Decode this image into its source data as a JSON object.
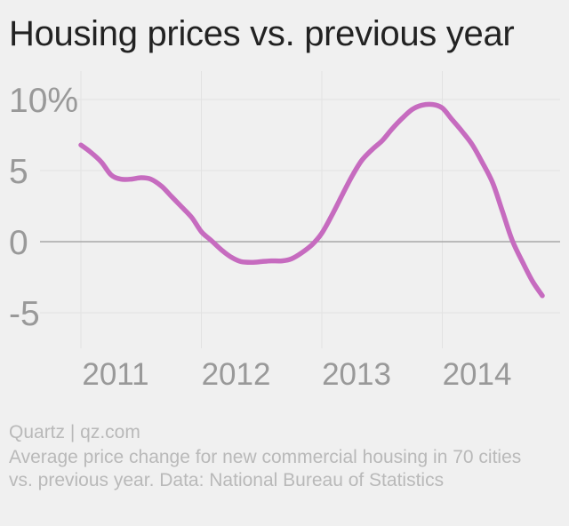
{
  "header": {
    "title": "Housing prices vs. previous year"
  },
  "footer": {
    "credit": "Quartz | qz.com",
    "description": "Average price change for new commercial housing in 70 cities vs. previous year. Data: National Bureau of Statistics"
  },
  "colors": {
    "line": "#c66bbf",
    "grid": "#e2e2e2",
    "zero_line": "#a8a8a8",
    "tick_text": "#999999",
    "background": "#f0f0f0"
  },
  "chart_data": {
    "type": "line",
    "title": "Housing prices vs. previous year",
    "xlabel": "",
    "ylabel": "",
    "xlim": [
      2010.9,
      2014.95
    ],
    "ylim": [
      -6,
      12
    ],
    "x_ticks": [
      {
        "value": 2011,
        "label": "2011"
      },
      {
        "value": 2012,
        "label": "2012"
      },
      {
        "value": 2013,
        "label": "2013"
      },
      {
        "value": 2014,
        "label": "2014"
      }
    ],
    "y_ticks": [
      {
        "value": 10,
        "label": "10%"
      },
      {
        "value": 5,
        "label": "5"
      },
      {
        "value": 0,
        "label": "0"
      },
      {
        "value": -5,
        "label": "-5"
      }
    ],
    "grid": true,
    "series": [
      {
        "x": [
          2011.0,
          2011.08,
          2011.17,
          2011.25,
          2011.33,
          2011.42,
          2011.5,
          2011.58,
          2011.67,
          2011.75,
          2011.83,
          2011.92,
          2012.0,
          2012.08,
          2012.17,
          2012.25,
          2012.33,
          2012.42,
          2012.5,
          2012.58,
          2012.67,
          2012.75,
          2012.83,
          2012.92,
          2013.0,
          2013.08,
          2013.17,
          2013.25,
          2013.33,
          2013.42,
          2013.5,
          2013.58,
          2013.67,
          2013.75,
          2013.83,
          2013.92,
          2014.0,
          2014.08,
          2014.17,
          2014.25,
          2014.33,
          2014.42,
          2014.5,
          2014.58,
          2014.67,
          2014.75,
          2014.83
        ],
        "values": [
          6.8,
          6.3,
          5.6,
          4.7,
          4.4,
          4.4,
          4.5,
          4.4,
          3.9,
          3.2,
          2.5,
          1.7,
          0.7,
          0.1,
          -0.6,
          -1.1,
          -1.4,
          -1.45,
          -1.4,
          -1.35,
          -1.35,
          -1.2,
          -0.8,
          -0.2,
          0.6,
          1.8,
          3.3,
          4.6,
          5.7,
          6.5,
          7.1,
          7.9,
          8.7,
          9.3,
          9.6,
          9.65,
          9.4,
          8.6,
          7.7,
          6.8,
          5.6,
          4.1,
          2.1,
          0.1,
          -1.5,
          -2.8,
          -3.8
        ]
      }
    ]
  }
}
